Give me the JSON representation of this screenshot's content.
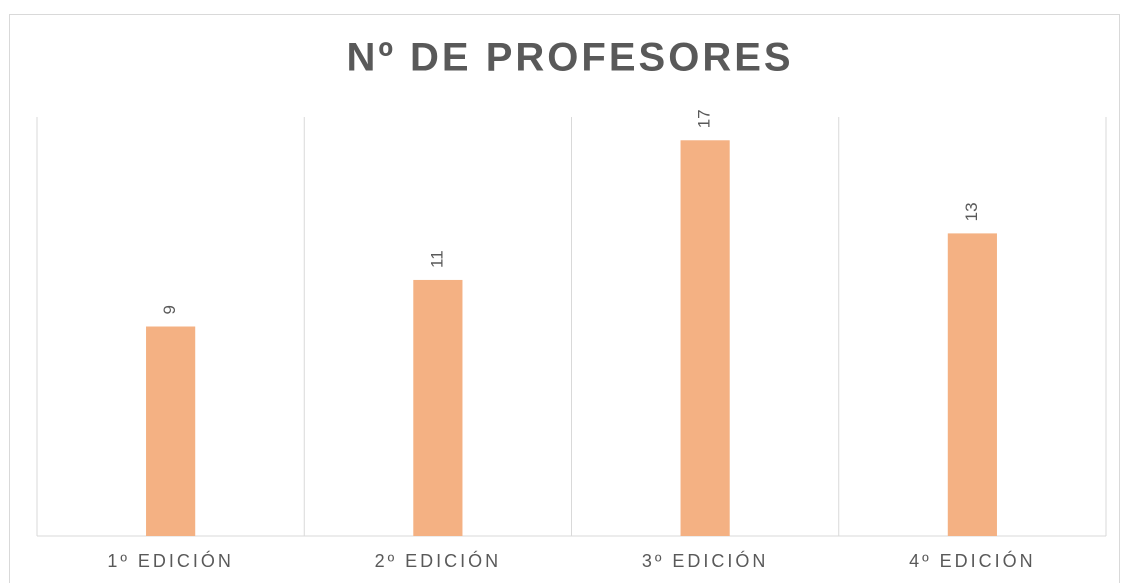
{
  "chart_data": {
    "type": "bar",
    "title": "Nº DE PROFESORES",
    "categories": [
      "1º EDICIÓN",
      "2º EDICIÓN",
      "3º EDICIÓN",
      "4º EDICIÓN"
    ],
    "values": [
      9,
      11,
      17,
      13
    ],
    "color": "#f4b183",
    "ylim": [
      0,
      18
    ],
    "grid": false
  }
}
